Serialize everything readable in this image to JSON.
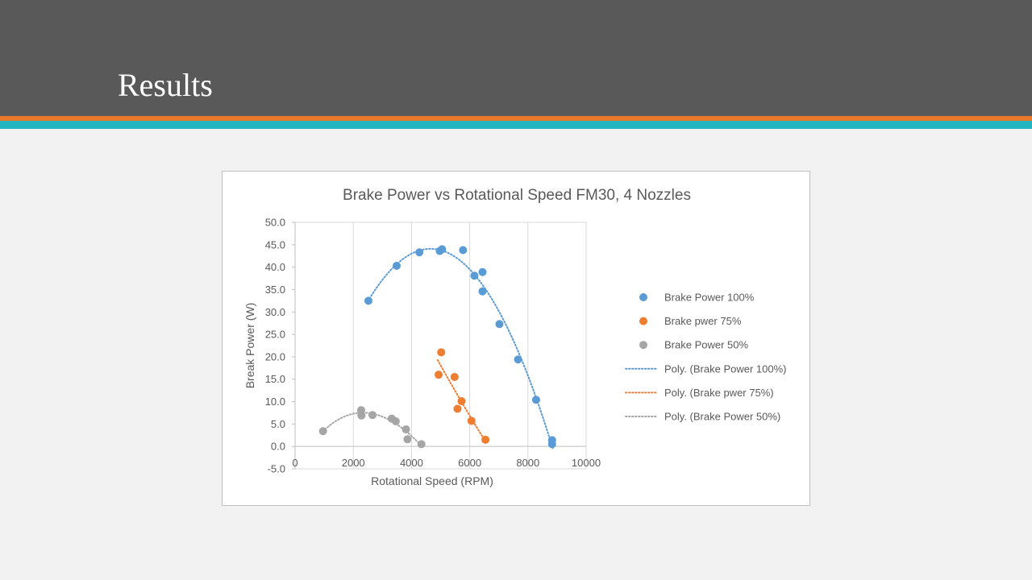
{
  "slide": {
    "title": "Results"
  },
  "chart_data": {
    "type": "scatter",
    "title": "Brake Power vs Rotational Speed FM30, 4 Nozzles",
    "xlabel": "Rotational Speed (RPM)",
    "ylabel": "Break Power (W)",
    "xlim": [
      0,
      10000
    ],
    "ylim": [
      -5,
      50
    ],
    "xticks": [
      0,
      2000,
      4000,
      6000,
      8000,
      10000
    ],
    "yticks": [
      -5,
      0,
      5,
      10,
      15,
      20,
      25,
      30,
      35,
      40,
      45,
      50
    ],
    "ytick_labels": [
      "-5.0",
      "0.0",
      "5.0",
      "10.0",
      "15.0",
      "20.0",
      "25.0",
      "30.0",
      "35.0",
      "40.0",
      "45.0",
      "50.0"
    ],
    "vertical_grid": true,
    "horizontal_grid": false,
    "legend_position": "right",
    "series": [
      {
        "name": "Brake Power 100%",
        "color": "#5b9bd5",
        "x": [
          2520,
          3490,
          4270,
          4970,
          5050,
          5770,
          6160,
          6440,
          6440,
          7020,
          7660,
          8280,
          8830,
          8830
        ],
        "y": [
          32.5,
          40.3,
          43.3,
          43.6,
          44.0,
          43.8,
          38.1,
          38.9,
          34.6,
          27.3,
          19.4,
          10.4,
          1.4,
          0.5
        ]
      },
      {
        "name": "Brake pwer 75%",
        "color": "#ed7d31",
        "x": [
          4930,
          5020,
          5480,
          5580,
          5720,
          6060,
          6540
        ],
        "y": [
          16.0,
          21.0,
          15.5,
          8.4,
          10.1,
          5.7,
          1.5
        ]
      },
      {
        "name": "Brake Power 50%",
        "color": "#a5a5a5",
        "x": [
          960,
          2270,
          2280,
          2660,
          3320,
          3460,
          3810,
          3860,
          4340
        ],
        "y": [
          3.4,
          8.1,
          6.9,
          7.0,
          6.2,
          5.6,
          3.8,
          1.6,
          0.5
        ]
      }
    ],
    "trendlines": [
      {
        "name": "Poly. (Brake Power 100%)",
        "color": "#5b9bd5",
        "type": "polynomial",
        "x_range": [
          2500,
          8850
        ]
      },
      {
        "name": "Poly. (Brake pwer 75%)",
        "color": "#ed7d31",
        "type": "polynomial",
        "x_range": [
          4900,
          6550
        ]
      },
      {
        "name": "Poly. (Brake Power 50%)",
        "color": "#a5a5a5",
        "type": "polynomial",
        "x_range": [
          950,
          4350
        ]
      }
    ]
  }
}
